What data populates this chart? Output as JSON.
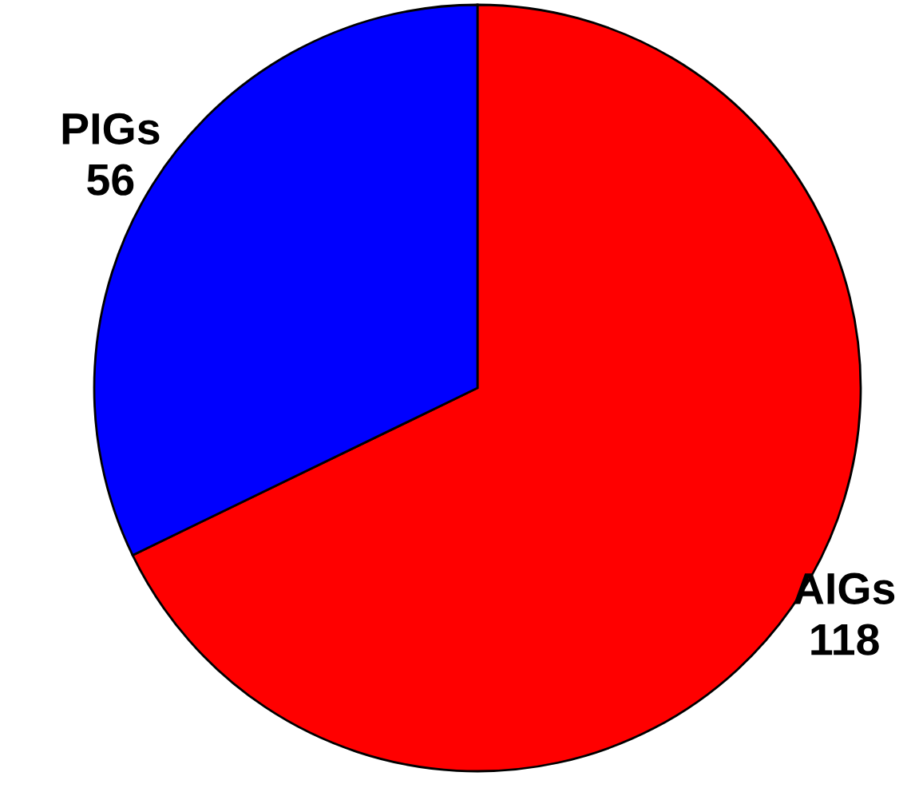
{
  "chart_data": {
    "type": "pie",
    "categories": [
      "AIGs",
      "PIGs"
    ],
    "values": [
      118,
      56
    ],
    "colors": [
      "#ff0000",
      "#0000ff"
    ],
    "data_labels": true
  }
}
